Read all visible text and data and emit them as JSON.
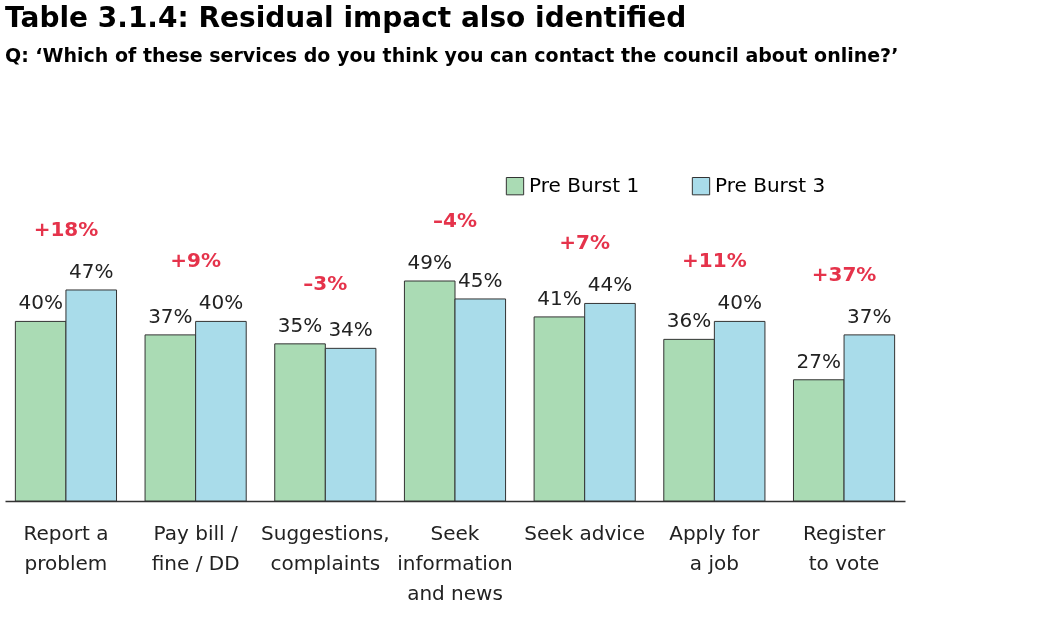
{
  "chart_data": {
    "type": "bar",
    "title": "Table 3.1.4: Residual impact also identified",
    "subtitle": "Q: ‘Which of these services do you think you can contact the council about online?’",
    "categories": [
      "Report a\nproblem",
      "Pay bill /\nfine / DD",
      "Suggestions,\ncomplaints",
      "Seek\ninformation\nand news",
      "Seek advice",
      "Apply for\na job",
      "Register\nto vote"
    ],
    "series": [
      {
        "name": "Pre Burst 1",
        "color": "#aadbb4",
        "values": [
          40,
          37,
          35,
          49,
          41,
          36,
          27
        ],
        "value_labels": [
          "40%",
          "37%",
          "35%",
          "49%",
          "41%",
          "36%",
          "27%"
        ]
      },
      {
        "name": "Pre Burst 3",
        "color": "#a9dcea",
        "values": [
          47,
          40,
          34,
          45,
          44,
          40,
          37
        ],
        "value_labels": [
          "47%",
          "40%",
          "34%",
          "45%",
          "44%",
          "40%",
          "37%"
        ]
      }
    ],
    "legend": "top right",
    "tick_labels": "x",
    "annotations": [
      "+18%",
      "+9%",
      "–3%",
      "–4%",
      "+7%",
      "+11%",
      "+37%"
    ]
  }
}
